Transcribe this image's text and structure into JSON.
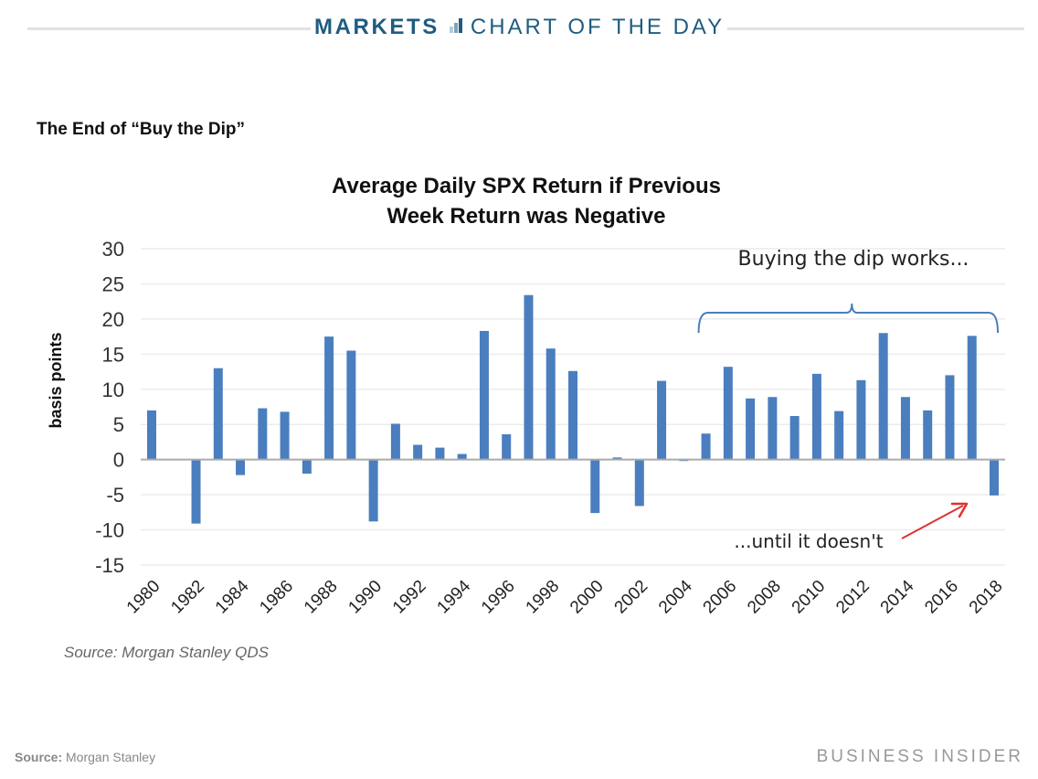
{
  "header": {
    "section": "MARKETS",
    "icon": "bar-chart-icon",
    "title": "CHART OF THE DAY"
  },
  "subtitle": "The End of “Buy the Dip”",
  "inner_source": "Source: Morgan Stanley QDS",
  "footer": {
    "source_label": "Source:",
    "source_value": "Morgan Stanley",
    "brand": "BUSINESS INSIDER"
  },
  "chart_data": {
    "type": "bar",
    "title": [
      "Average Daily SPX Return if Previous",
      "Week Return was Negative"
    ],
    "xlabel": "",
    "ylabel": "basis points",
    "ylim": [
      -15,
      30
    ],
    "yticks": [
      30,
      25,
      20,
      15,
      10,
      5,
      0,
      -5,
      -10,
      -15
    ],
    "grid": true,
    "bar_color": "#4a7ebf",
    "categories": [
      "1980",
      "1981",
      "1982",
      "1983",
      "1984",
      "1985",
      "1986",
      "1987",
      "1988",
      "1989",
      "1990",
      "1991",
      "1992",
      "1993",
      "1994",
      "1995",
      "1996",
      "1997",
      "1998",
      "1999",
      "2000",
      "2001",
      "2002",
      "2003",
      "2004",
      "2005",
      "2006",
      "2007",
      "2008",
      "2009",
      "2010",
      "2011",
      "2012",
      "2013",
      "2014",
      "2015",
      "2016",
      "2017",
      "2018"
    ],
    "xtick_labels": [
      "1980",
      "1982",
      "1984",
      "1986",
      "1988",
      "1990",
      "1992",
      "1994",
      "1996",
      "1998",
      "2000",
      "2002",
      "2004",
      "2006",
      "2008",
      "2010",
      "2012",
      "2014",
      "2016",
      "2018"
    ],
    "values": [
      7.0,
      0.0,
      -9.1,
      13.0,
      -2.2,
      7.3,
      6.8,
      -2.0,
      17.5,
      15.5,
      -8.8,
      5.1,
      2.1,
      1.7,
      0.8,
      18.3,
      3.6,
      23.4,
      15.8,
      12.6,
      -7.6,
      0.3,
      -6.6,
      11.2,
      -0.2,
      3.7,
      13.2,
      8.7,
      8.9,
      6.2,
      12.2,
      6.9,
      11.3,
      18.0,
      8.9,
      7.0,
      12.0,
      17.6,
      -5.1
    ],
    "annotations": [
      {
        "text": "Buying the dip works...",
        "type": "brace",
        "span": [
          "2005",
          "2018"
        ],
        "color": "#4a7ebf"
      },
      {
        "text": "...until it doesn't",
        "type": "arrow",
        "target": "2018",
        "color": "#e03030"
      }
    ]
  }
}
